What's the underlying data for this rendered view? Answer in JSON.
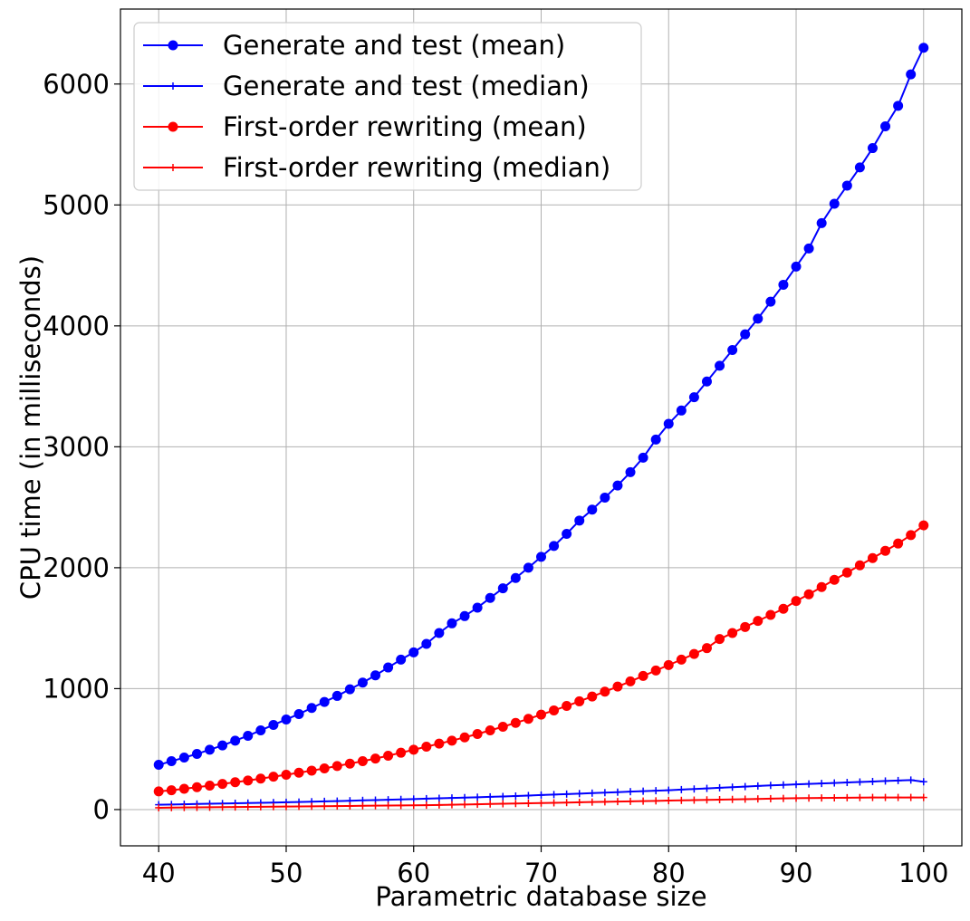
{
  "chart_data": {
    "type": "line",
    "title": "",
    "xlabel": "Parametric database size",
    "ylabel": "CPU time (in milliseconds)",
    "xlim": [
      37,
      103
    ],
    "ylim": [
      -300,
      6620
    ],
    "xticks": [
      40,
      50,
      60,
      70,
      80,
      90,
      100
    ],
    "yticks": [
      0,
      1000,
      2000,
      3000,
      4000,
      5000,
      6000
    ],
    "grid": true,
    "legend_position": "upper-left",
    "x": [
      40,
      41,
      42,
      43,
      44,
      45,
      46,
      47,
      48,
      49,
      50,
      51,
      52,
      53,
      54,
      55,
      56,
      57,
      58,
      59,
      60,
      61,
      62,
      63,
      64,
      65,
      66,
      67,
      68,
      69,
      70,
      71,
      72,
      73,
      74,
      75,
      76,
      77,
      78,
      79,
      80,
      81,
      82,
      83,
      84,
      85,
      86,
      87,
      88,
      89,
      90,
      91,
      92,
      93,
      94,
      95,
      96,
      97,
      98,
      99,
      100
    ],
    "series": [
      {
        "name": "Generate and test (mean)",
        "color": "#0000ff",
        "marker": "circle",
        "values": [
          370,
          400,
          430,
          460,
          495,
          530,
          570,
          610,
          655,
          700,
          745,
          790,
          840,
          890,
          940,
          995,
          1050,
          1110,
          1175,
          1240,
          1300,
          1370,
          1460,
          1540,
          1600,
          1670,
          1750,
          1830,
          1915,
          2000,
          2090,
          2180,
          2280,
          2390,
          2480,
          2580,
          2680,
          2790,
          2910,
          3060,
          3190,
          3300,
          3410,
          3540,
          3670,
          3800,
          3930,
          4060,
          4200,
          4340,
          4490,
          4640,
          4850,
          5010,
          5160,
          5310,
          5470,
          5650,
          5820,
          6080,
          6300
        ]
      },
      {
        "name": "Generate and test (median)",
        "color": "#0000ff",
        "marker": "plus",
        "values": [
          40,
          42,
          44,
          46,
          48,
          50,
          52,
          54,
          56,
          58,
          60,
          62,
          65,
          68,
          70,
          73,
          76,
          78,
          81,
          84,
          87,
          90,
          93,
          96,
          99,
          102,
          105,
          108,
          112,
          116,
          120,
          124,
          128,
          132,
          136,
          140,
          144,
          148,
          152,
          156,
          160,
          165,
          170,
          175,
          180,
          185,
          190,
          195,
          200,
          204,
          208,
          212,
          216,
          220,
          224,
          228,
          232,
          236,
          240,
          244,
          230
        ]
      },
      {
        "name": "First-order rewriting (mean)",
        "color": "#ff0000",
        "marker": "circle",
        "values": [
          150,
          160,
          172,
          185,
          198,
          212,
          226,
          240,
          256,
          272,
          288,
          305,
          322,
          340,
          360,
          380,
          400,
          422,
          445,
          470,
          495,
          520,
          545,
          570,
          597,
          625,
          655,
          685,
          717,
          750,
          785,
          820,
          857,
          895,
          935,
          975,
          1017,
          1060,
          1105,
          1150,
          1195,
          1240,
          1287,
          1335,
          1410,
          1460,
          1510,
          1560,
          1610,
          1660,
          1725,
          1780,
          1840,
          1900,
          1960,
          2020,
          2080,
          2140,
          2200,
          2270,
          2350
        ]
      },
      {
        "name": "First-order rewriting (median)",
        "color": "#ff0000",
        "marker": "plus",
        "values": [
          15,
          16,
          17,
          18,
          19,
          20,
          21,
          22,
          23,
          24,
          25,
          26,
          27,
          28,
          29,
          30,
          31,
          32,
          33,
          34,
          35,
          36,
          38,
          40,
          42,
          44,
          46,
          48,
          50,
          52,
          54,
          56,
          58,
          60,
          62,
          64,
          66,
          68,
          70,
          72,
          74,
          76,
          78,
          80,
          82,
          84,
          86,
          88,
          90,
          92,
          94,
          95,
          96,
          97,
          98,
          99,
          100,
          100,
          100,
          100,
          100
        ]
      }
    ]
  }
}
